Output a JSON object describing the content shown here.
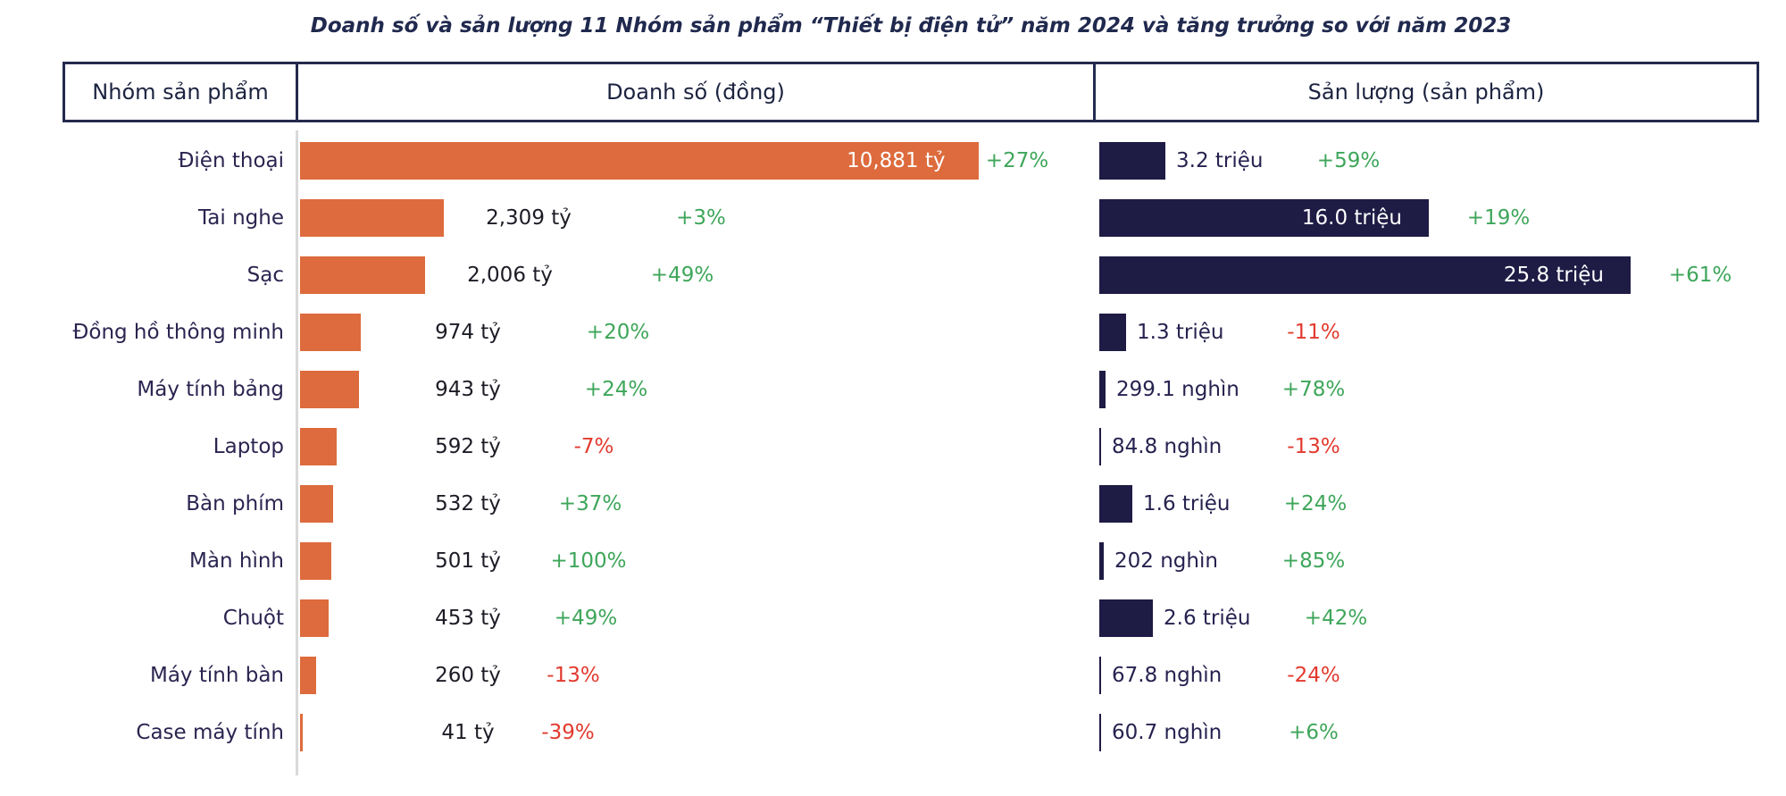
{
  "title": "Doanh số và sản lượng 11 Nhóm sản phẩm “Thiết bị điện tử” năm 2024 và tăng trưởng so với năm 2023",
  "header": {
    "col_category": "Nhóm sản phẩm",
    "col_revenue": "Doanh số (đồng)",
    "col_volume": "Sản lượng (sản phẩm)"
  },
  "colors": {
    "revenue_bar": "#DD6B3D",
    "volume_bar": "#1E1B45",
    "growth_positive": "#3EA65A",
    "growth_negative": "#E23A2E",
    "table_border": "#232B4D",
    "category_text": "#2A2550",
    "axis_line": "#D9D9D9"
  },
  "chart_data": {
    "type": "bar",
    "orientation": "horizontal",
    "grid": false,
    "categories": [
      "Điện thoại",
      "Tai nghe",
      "Sạc",
      "Đồng hồ thông minh",
      "Máy tính bảng",
      "Laptop",
      "Bàn phím",
      "Màn hình",
      "Chuột",
      "Máy tính bàn",
      "Case máy tính"
    ],
    "panels": [
      {
        "name": "Doanh số (đồng)",
        "unit": "tỷ đồng",
        "axis_max": 10881,
        "values": [
          10881,
          2309,
          2006,
          974,
          943,
          592,
          532,
          501,
          453,
          260,
          41
        ],
        "value_labels": [
          "10,881 tỷ",
          "2,309 tỷ",
          "2,006 tỷ",
          "974 tỷ",
          "943 tỷ",
          "592 tỷ",
          "532 tỷ",
          "501 tỷ",
          "453 tỷ",
          "260 tỷ",
          "41 tỷ"
        ],
        "growth_values": [
          27,
          3,
          49,
          20,
          24,
          -7,
          37,
          100,
          49,
          -13,
          -39
        ],
        "growth_labels": [
          "+27%",
          "+3%",
          "+49%",
          "+20%",
          "+24%",
          "-7%",
          "+37%",
          "+100%",
          "+49%",
          "-13%",
          "-39%"
        ]
      },
      {
        "name": "Sản lượng (sản phẩm)",
        "unit": "nghìn sản phẩm",
        "axis_max": 25800,
        "values": [
          3200,
          16000,
          25800,
          1300,
          299.1,
          84.8,
          1600,
          202,
          2600,
          67.8,
          60.7
        ],
        "value_labels": [
          "3.2 triệu",
          "16.0 triệu",
          "25.8 triệu",
          "1.3 triệu",
          "299.1 nghìn",
          "84.8 nghìn",
          "1.6 triệu",
          "202 nghìn",
          "2.6 triệu",
          "67.8 nghìn",
          "60.7 nghìn"
        ],
        "growth_values": [
          59,
          19,
          61,
          -11,
          78,
          -13,
          24,
          85,
          42,
          -24,
          6
        ],
        "growth_labels": [
          "+59%",
          "+19%",
          "+61%",
          "-11%",
          "+78%",
          "-13%",
          "+24%",
          "+85%",
          "+42%",
          "-24%",
          "+6%"
        ]
      }
    ]
  }
}
